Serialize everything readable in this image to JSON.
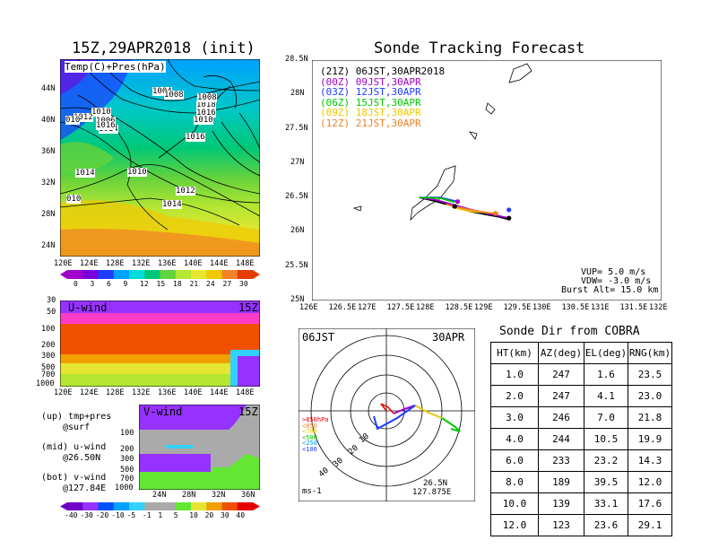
{
  "panels": {
    "map_title": "15Z,29APR2018 (init)",
    "map_label": "Temp(C)+Pres(hPa)",
    "isobar_labels": [
      "1004",
      "1008",
      "1010",
      "1012",
      "1006",
      "1014",
      "1016",
      "1018",
      "1016",
      "1010",
      "1014",
      "1010",
      "1012",
      "1014",
      "1016",
      "1008",
      "010",
      "010"
    ],
    "map_xticks": [
      "120E",
      "124E",
      "128E",
      "132E",
      "136E",
      "140E",
      "144E",
      "148E"
    ],
    "map_yticks": [
      "44N",
      "40N",
      "36N",
      "32N",
      "28N",
      "24N"
    ],
    "temp_colorbar": [
      "0",
      "3",
      "6",
      "9",
      "12",
      "15",
      "18",
      "21",
      "24",
      "27",
      "30"
    ],
    "uwind_label": "U-wind",
    "uwind_time": "15Z",
    "uwind_yticks": [
      "30",
      "50",
      "100",
      "200",
      "300",
      "500",
      "700",
      "1000"
    ],
    "uwind_xticks": [
      "120E",
      "124E",
      "128E",
      "132E",
      "136E",
      "140E",
      "144E",
      "148E"
    ],
    "vwind_label": "V-wind",
    "vwind_time": "15Z",
    "vwind_yticks": [
      "100",
      "200",
      "300",
      "500",
      "700",
      "1000"
    ],
    "vwind_xticks": [
      "24N",
      "28N",
      "32N",
      "36N"
    ],
    "wind_colorbar": [
      "-40",
      "-30",
      "-20",
      "-10",
      "-5",
      "-1",
      "1",
      "5",
      "10",
      "20",
      "30",
      "40"
    ],
    "notes": [
      {
        "a": "(up) tmp+pres",
        "b": "@surf"
      },
      {
        "a": "(mid) u-wind",
        "b": "@26.50N"
      },
      {
        "a": "(bot) v-wind",
        "b": "@127.84E"
      }
    ]
  },
  "colors": {
    "palette_temp": [
      "#a000c8",
      "#7800dc",
      "#1e3cff",
      "#00a0ff",
      "#00dcdc",
      "#00c878",
      "#64d23c",
      "#b4e632",
      "#e6e632",
      "#f0c800",
      "#f08228",
      "#e63c00"
    ],
    "palette_wind": [
      "#6e00c8",
      "#9632ff",
      "#0050ff",
      "#00a0ff",
      "#32d2ff",
      "#aaaaaa",
      "#aaaaaa",
      "#64e632",
      "#e6e632",
      "#f0a000",
      "#f05000",
      "#e60000"
    ]
  },
  "chart_data": {
    "type": "line",
    "title": "Sonde Tracking Forecast",
    "xlabel": "",
    "ylabel": "",
    "xlim": [
      126,
      132
    ],
    "ylim": [
      25,
      28.5
    ],
    "xticks": [
      "126E",
      "126.5E",
      "127E",
      "127.5E",
      "128E",
      "128.5E",
      "129E",
      "129.5E",
      "130E",
      "130.5E",
      "131E",
      "131.5E",
      "132E"
    ],
    "yticks": [
      "25N",
      "25.5N",
      "26N",
      "26.5N",
      "27N",
      "27.5N",
      "28N",
      "28.5N"
    ],
    "legend": [
      {
        "text": "(21Z) 06JST,30APR2018",
        "color": "#000000"
      },
      {
        "text": "(00Z) 09JST,30APR",
        "color": "#a000c8"
      },
      {
        "text": "(03Z) 12JST,30APR",
        "color": "#1e3cff"
      },
      {
        "text": "(06Z) 15JST,30APR",
        "color": "#00c800"
      },
      {
        "text": "(09Z) 18JST,30APR",
        "color": "#f0c800"
      },
      {
        "text": "(12Z) 21JST,30APR",
        "color": "#f08228"
      }
    ],
    "series": [
      {
        "color": "#000000",
        "x": [
          127.84,
          128.1,
          128.4,
          128.7,
          129.0,
          129.2,
          129.38
        ],
        "y": [
          26.5,
          26.45,
          26.38,
          26.3,
          26.25,
          26.22,
          26.18
        ]
      },
      {
        "color": "#a000c8",
        "x": [
          127.84,
          128.1,
          128.4,
          128.7,
          129.0,
          129.38
        ],
        "y": [
          26.5,
          26.47,
          26.4,
          26.33,
          26.27,
          26.2
        ]
      },
      {
        "color": "#1e3cff",
        "x": [
          127.84,
          128.2,
          128.5
        ],
        "y": [
          26.5,
          26.5,
          26.44
        ]
      },
      {
        "color": "#00c800",
        "x": [
          127.84,
          128.2,
          128.45
        ],
        "y": [
          26.5,
          26.49,
          26.43
        ]
      },
      {
        "color": "#f0c800",
        "x": [
          128.4,
          128.7,
          129.0,
          129.2
        ],
        "y": [
          26.36,
          26.3,
          26.28,
          26.27
        ]
      },
      {
        "color": "#f08228",
        "x": [
          128.3,
          128.6,
          129.0,
          129.2
        ],
        "y": [
          26.4,
          26.34,
          26.28,
          26.26
        ]
      }
    ],
    "endpoints": [
      {
        "x": 128.45,
        "y": 26.37,
        "color": "#000000"
      },
      {
        "x": 129.38,
        "y": 26.2,
        "color": "#000000"
      },
      {
        "x": 129.38,
        "y": 26.32,
        "color": "#1e3cff"
      },
      {
        "x": 128.5,
        "y": 26.44,
        "color": "#a000c8"
      },
      {
        "x": 129.15,
        "y": 26.27,
        "color": "#f08228"
      }
    ],
    "params": [
      "VUP=  5.0 m/s",
      "VDW= -3.0 m/s",
      "Burst Alt= 15.0 km"
    ]
  },
  "hodograph": {
    "time": "06JST",
    "date": "30APR",
    "rings": [
      "10",
      "20",
      "30",
      "40"
    ],
    "levels": [
      ">850hPa",
      "<850",
      "<700",
      "<500",
      "<250",
      "<100"
    ],
    "level_colors": [
      "#e60000",
      "#f08228",
      "#e6c800",
      "#00c800",
      "#00a0ff",
      "#1e3cff"
    ],
    "units": "ms-1",
    "position": [
      "26.5N",
      "127.875E"
    ]
  },
  "sonde_table": {
    "title": "Sonde Dir from COBRA",
    "headers": [
      "HT(km)",
      "AZ(deg)",
      "EL(deg)",
      "RNG(km)"
    ],
    "rows": [
      [
        "1.0",
        "247",
        "1.6",
        "23.5"
      ],
      [
        "2.0",
        "247",
        "4.1",
        "23.0"
      ],
      [
        "3.0",
        "246",
        "7.0",
        "21.8"
      ],
      [
        "4.0",
        "244",
        "10.5",
        "19.9"
      ],
      [
        "6.0",
        "233",
        "23.2",
        "14.3"
      ],
      [
        "8.0",
        "189",
        "39.5",
        "12.0"
      ],
      [
        "10.0",
        "139",
        "33.1",
        "17.6"
      ],
      [
        "12.0",
        "123",
        "23.6",
        "29.1"
      ]
    ]
  }
}
